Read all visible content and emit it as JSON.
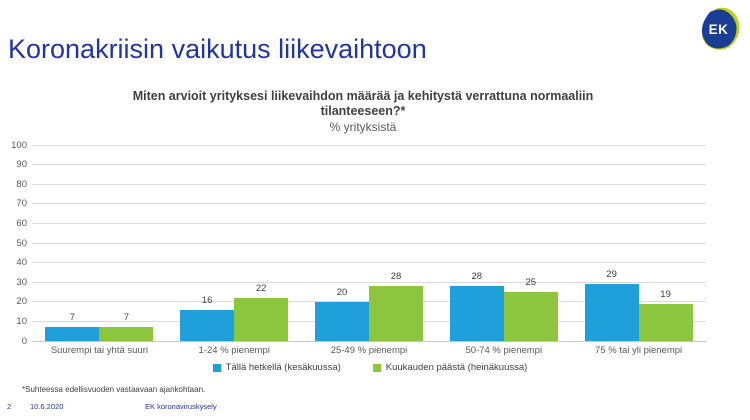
{
  "logo": {
    "text": "EK",
    "navy": "#1A3E94",
    "lime": "#BCD118"
  },
  "header": {
    "title": "Koronakriisin vaikutus liikevaihtoon",
    "accent_color": "#2134A6"
  },
  "chart": {
    "title_line1": "Miten arvioit yrityksesi liikevaihdon määrää ja kehitystä verrattuna normaaliin",
    "title_line2": "tilanteeseen?*",
    "subtitle": "% yrityksistä"
  },
  "chart_data": {
    "type": "bar",
    "title": "Miten arvioit yrityksesi liikevaihdon määrää ja kehitystä verrattuna normaaliin tilanteeseen?*",
    "subtitle": "% yrityksistä",
    "categories": [
      "Suurempi tai yhtä suuri",
      "1-24 % pienempi",
      "25-49 % pienempi",
      "50-74 % pienempi",
      "75 % tai yli pienempi"
    ],
    "series": [
      {
        "name": "Tällä hetkellä (kesäkuussa)",
        "color": "#1FA0DB",
        "values": [
          7,
          16,
          20,
          28,
          29
        ]
      },
      {
        "name": "Kuukauden päästä (heinäkuussa)",
        "color": "#8CC63E",
        "values": [
          7,
          22,
          28,
          25,
          19
        ]
      }
    ],
    "ylim": [
      0,
      100
    ],
    "yticks": [
      0,
      10,
      20,
      30,
      40,
      50,
      60,
      70,
      80,
      90,
      100
    ],
    "grid": true,
    "legend_position": "bottom",
    "value_labels": true
  },
  "footnote": "*Suhteessa edellisvuoden vastaavaan ajankohtaan.",
  "footer": {
    "page_number": "2",
    "date": "10.6.2020",
    "label": "EK koronaviruskysely"
  }
}
